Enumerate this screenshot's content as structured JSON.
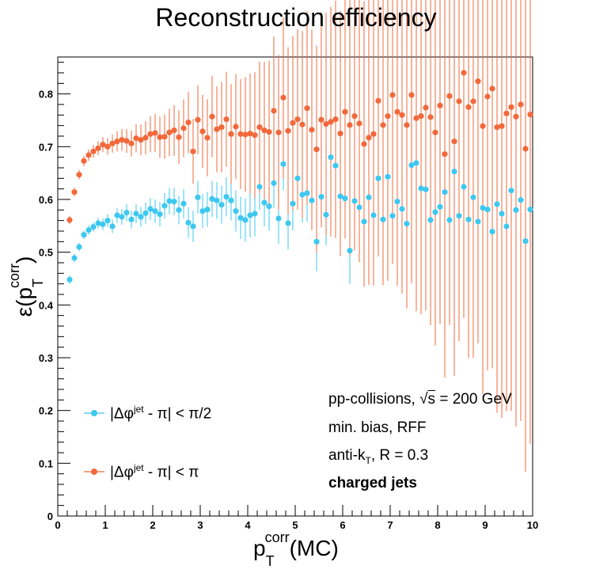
{
  "chart_data": {
    "type": "scatter",
    "title": "Reconstruction efficiency",
    "xlabel": "p_T^corr(MC)",
    "ylabel": "ε(p_T^corr)",
    "xlim": [
      0,
      10
    ],
    "ylim": [
      0,
      0.87
    ],
    "x_ticks": [
      "0",
      "1",
      "2",
      "3",
      "4",
      "5",
      "6",
      "7",
      "8",
      "9",
      "10"
    ],
    "y_ticks": [
      "0",
      "0.1",
      "0.2",
      "0.3",
      "0.4",
      "0.5",
      "0.6",
      "0.7",
      "0.8"
    ],
    "grid": false,
    "legend_position": "bottom-left",
    "series": [
      {
        "name": "|Δφ^jet - π| < π/2",
        "color": "#3ec8ef",
        "x": [
          0.25,
          0.35,
          0.45,
          0.55,
          0.65,
          0.75,
          0.85,
          0.95,
          1.05,
          1.15,
          1.25,
          1.35,
          1.45,
          1.55,
          1.65,
          1.75,
          1.85,
          1.95,
          2.05,
          2.15,
          2.25,
          2.35,
          2.45,
          2.55,
          2.65,
          2.75,
          2.85,
          2.95,
          3.05,
          3.15,
          3.25,
          3.35,
          3.45,
          3.55,
          3.65,
          3.75,
          3.85,
          3.95,
          4.05,
          4.15,
          4.25,
          4.35,
          4.45,
          4.55,
          4.65,
          4.75,
          4.85,
          4.95,
          5.05,
          5.15,
          5.25,
          5.35,
          5.45,
          5.55,
          5.65,
          5.75,
          5.85,
          5.95,
          6.05,
          6.15,
          6.25,
          6.35,
          6.45,
          6.55,
          6.65,
          6.75,
          6.85,
          6.95,
          7.05,
          7.15,
          7.25,
          7.35,
          7.45,
          7.55,
          7.65,
          7.75,
          7.85,
          7.95,
          8.05,
          8.15,
          8.25,
          8.35,
          8.45,
          8.55,
          8.65,
          8.75,
          8.85,
          8.95,
          9.05,
          9.15,
          9.25,
          9.35,
          9.45,
          9.55,
          9.65,
          9.75,
          9.85,
          9.95
        ],
        "y": [
          0.448,
          0.489,
          0.51,
          0.533,
          0.542,
          0.548,
          0.555,
          0.553,
          0.56,
          0.549,
          0.57,
          0.567,
          0.575,
          0.562,
          0.573,
          0.567,
          0.574,
          0.582,
          0.578,
          0.572,
          0.588,
          0.597,
          0.596,
          0.58,
          0.592,
          0.556,
          0.549,
          0.604,
          0.578,
          0.581,
          0.601,
          0.598,
          0.59,
          0.605,
          0.598,
          0.578,
          0.565,
          0.561,
          0.57,
          0.573,
          0.624,
          0.594,
          0.587,
          0.631,
          0.564,
          0.667,
          0.555,
          0.592,
          0.64,
          0.609,
          0.612,
          0.598,
          0.52,
          0.605,
          0.571,
          0.68,
          0.664,
          0.606,
          0.602,
          0.503,
          0.597,
          0.585,
          0.558,
          0.604,
          0.57,
          0.64,
          0.562,
          0.643,
          0.569,
          0.596,
          0.582,
          0.554,
          0.665,
          0.669,
          0.621,
          0.619,
          0.561,
          0.576,
          0.586,
          0.614,
          0.561,
          0.653,
          0.569,
          0.624,
          0.562,
          0.604,
          0.558,
          0.584,
          0.581,
          0.539,
          0.591,
          0.573,
          0.549,
          0.617,
          0.58,
          0.599,
          0.521,
          0.581
        ],
        "err": [
          0.008,
          0.008,
          0.008,
          0.008,
          0.009,
          0.009,
          0.01,
          0.011,
          0.012,
          0.013,
          0.014,
          0.015,
          0.016,
          0.017,
          0.018,
          0.019,
          0.02,
          0.021,
          0.022,
          0.023,
          0.024,
          0.025,
          0.026,
          0.027,
          0.028,
          0.029,
          0.03,
          0.031,
          0.032,
          0.033,
          0.034,
          0.035,
          0.036,
          0.037,
          0.038,
          0.039,
          0.04,
          0.041,
          0.042,
          0.043,
          0.044,
          0.045,
          0.046,
          0.047,
          0.048,
          0.049,
          0.05,
          0.051,
          0.052,
          0.053,
          0.054,
          0.055,
          0.056,
          0.057,
          0.058,
          0.059,
          0.06,
          0.061,
          0.062,
          0.063,
          0.064,
          0.065,
          0.066,
          0.067,
          0.068,
          0.069,
          0.07,
          0.071,
          0.072,
          0.073,
          0.074,
          0.075,
          0.076,
          0.077,
          0.078,
          0.079,
          0.08,
          0.081,
          0.082,
          0.083,
          0.084,
          0.085,
          0.086,
          0.087,
          0.088,
          0.089,
          0.09,
          0.091,
          0.092,
          0.093,
          0.094,
          0.095,
          0.096,
          0.097,
          0.098,
          0.099,
          0.1,
          0.101
        ]
      },
      {
        "name": "|Δφ^jet - π| < π",
        "color": "#f2683a",
        "x": [
          0.25,
          0.35,
          0.45,
          0.55,
          0.65,
          0.75,
          0.85,
          0.95,
          1.05,
          1.15,
          1.25,
          1.35,
          1.45,
          1.55,
          1.65,
          1.75,
          1.85,
          1.95,
          2.05,
          2.15,
          2.25,
          2.35,
          2.45,
          2.55,
          2.65,
          2.75,
          2.85,
          2.95,
          3.05,
          3.15,
          3.25,
          3.35,
          3.45,
          3.55,
          3.65,
          3.75,
          3.85,
          3.95,
          4.05,
          4.15,
          4.25,
          4.35,
          4.45,
          4.55,
          4.65,
          4.75,
          4.85,
          4.95,
          5.05,
          5.15,
          5.25,
          5.35,
          5.45,
          5.55,
          5.65,
          5.75,
          5.85,
          5.95,
          6.05,
          6.15,
          6.25,
          6.35,
          6.45,
          6.55,
          6.65,
          6.75,
          6.85,
          6.95,
          7.05,
          7.15,
          7.25,
          7.35,
          7.45,
          7.55,
          7.65,
          7.75,
          7.85,
          7.95,
          8.05,
          8.15,
          8.25,
          8.35,
          8.45,
          8.55,
          8.65,
          8.75,
          8.85,
          8.95,
          9.05,
          9.15,
          9.25,
          9.35,
          9.45,
          9.55,
          9.65,
          9.75,
          9.85,
          9.95
        ],
        "y": [
          0.561,
          0.614,
          0.647,
          0.673,
          0.684,
          0.691,
          0.697,
          0.704,
          0.7,
          0.706,
          0.71,
          0.713,
          0.711,
          0.706,
          0.716,
          0.713,
          0.717,
          0.724,
          0.726,
          0.718,
          0.719,
          0.727,
          0.731,
          0.718,
          0.735,
          0.746,
          0.691,
          0.751,
          0.729,
          0.717,
          0.757,
          0.733,
          0.737,
          0.752,
          0.724,
          0.738,
          0.724,
          0.723,
          0.725,
          0.722,
          0.737,
          0.731,
          0.728,
          0.768,
          0.727,
          0.793,
          0.73,
          0.745,
          0.752,
          0.742,
          0.773,
          0.732,
          0.695,
          0.751,
          0.743,
          0.747,
          0.752,
          0.725,
          0.766,
          0.741,
          0.758,
          0.744,
          0.705,
          0.717,
          0.724,
          0.787,
          0.741,
          0.758,
          0.798,
          0.766,
          0.76,
          0.741,
          0.798,
          0.754,
          0.758,
          0.774,
          0.756,
          0.727,
          0.778,
          0.686,
          0.796,
          0.71,
          0.786,
          0.84,
          0.775,
          0.786,
          0.824,
          0.739,
          0.795,
          0.81,
          0.737,
          0.739,
          0.763,
          0.775,
          0.757,
          0.78,
          0.696,
          0.761
        ]
      }
    ]
  },
  "legend": {
    "items": [
      {
        "label_pre": "|Δφ",
        "sup": "jet",
        "label_post": " - π| < π/2",
        "color": "#3ec8ef"
      },
      {
        "label_pre": "|Δφ",
        "sup": "jet",
        "label_post": " - π| < π",
        "color": "#f2683a"
      }
    ]
  },
  "annotations": {
    "line1_pre": "pp-collisions, ",
    "line1_sqrt": "s",
    "line1_post": " = 200 GeV",
    "line2": "min. bias, RFF",
    "line3_pre": "anti-k",
    "line3_sub": "T",
    "line3_post": ", R = 0.3",
    "line4": "charged jets"
  }
}
